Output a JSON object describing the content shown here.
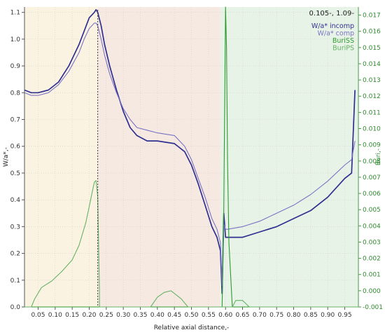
{
  "chart_data": {
    "type": "line",
    "x_label": "Relative axial distance,-",
    "y_left_label": "W/a*,-",
    "y_right_label": "Buri,-",
    "readout": "0.105-, 1.09-",
    "x_range": [
      0.01,
      0.99
    ],
    "y_left_range": [
      0,
      1.12
    ],
    "y_right_range": [
      -0.001,
      0.0175
    ],
    "x_ticks": [
      "0.05",
      "0.10",
      "0.15",
      "0.20",
      "0.25",
      "0.30",
      "0.35",
      "0.40",
      "0.45",
      "0.50",
      "0.55",
      "0.60",
      "0.65",
      "0.70",
      "0.75",
      "0.80",
      "0.85",
      "0.90",
      "0.95"
    ],
    "y_left_ticks": [
      "0.0",
      "0.1",
      "0.2",
      "0.3",
      "0.4",
      "0.5",
      "0.6",
      "0.7",
      "0.8",
      "0.9",
      "1.0",
      "1.1"
    ],
    "y_right_ticks": [
      "-0.001",
      "0.000",
      "0.001",
      "0.002",
      "0.003",
      "0.004",
      "0.005",
      "0.006",
      "0.007",
      "0.008",
      "0.009",
      "0.010",
      "0.011",
      "0.012",
      "0.013",
      "0.014",
      "0.015",
      "0.016",
      "0.017"
    ],
    "regions": [
      {
        "from": 0.01,
        "to": 0.225,
        "color": "#fbf3e2"
      },
      {
        "from": 0.225,
        "to": 0.585,
        "color": "#f6e9e1"
      },
      {
        "from": 0.585,
        "to": 0.99,
        "color": "#e6f3e6"
      }
    ],
    "marker_line_x": 0.225,
    "grid": true,
    "legend_position": "top-right",
    "series": [
      {
        "name": "W/a* incomp",
        "axis": "left",
        "color": "#303090",
        "x": [
          0.01,
          0.03,
          0.05,
          0.08,
          0.11,
          0.14,
          0.17,
          0.185,
          0.2,
          0.215,
          0.22,
          0.225,
          0.235,
          0.245,
          0.26,
          0.28,
          0.3,
          0.32,
          0.34,
          0.37,
          0.4,
          0.45,
          0.48,
          0.5,
          0.52,
          0.54,
          0.56,
          0.575,
          0.585,
          0.59,
          0.595,
          0.6,
          0.605,
          0.65,
          0.7,
          0.75,
          0.8,
          0.85,
          0.9,
          0.95,
          0.97,
          0.98
        ],
        "y": [
          0.81,
          0.8,
          0.8,
          0.81,
          0.84,
          0.9,
          0.98,
          1.03,
          1.08,
          1.1,
          1.11,
          1.1,
          1.05,
          0.98,
          0.9,
          0.81,
          0.73,
          0.67,
          0.64,
          0.62,
          0.62,
          0.61,
          0.58,
          0.53,
          0.46,
          0.38,
          0.3,
          0.26,
          0.21,
          0.05,
          0.35,
          0.26,
          0.26,
          0.26,
          0.28,
          0.3,
          0.33,
          0.36,
          0.41,
          0.48,
          0.5,
          0.81
        ]
      },
      {
        "name": "W/a* comp",
        "axis": "left",
        "color": "#7a73c4",
        "x": [
          0.01,
          0.03,
          0.05,
          0.08,
          0.11,
          0.14,
          0.17,
          0.185,
          0.2,
          0.215,
          0.22,
          0.225,
          0.235,
          0.245,
          0.26,
          0.28,
          0.3,
          0.32,
          0.34,
          0.37,
          0.4,
          0.45,
          0.48,
          0.5,
          0.52,
          0.54,
          0.56,
          0.575,
          0.585,
          0.59,
          0.595,
          0.6,
          0.605,
          0.65,
          0.7,
          0.75,
          0.8,
          0.85,
          0.9,
          0.95,
          0.97,
          0.98
        ],
        "y": [
          0.8,
          0.79,
          0.79,
          0.8,
          0.83,
          0.88,
          0.95,
          1.0,
          1.04,
          1.06,
          1.06,
          1.05,
          1.0,
          0.94,
          0.87,
          0.8,
          0.74,
          0.7,
          0.67,
          0.66,
          0.65,
          0.64,
          0.6,
          0.55,
          0.48,
          0.41,
          0.33,
          0.29,
          0.24,
          0.08,
          0.31,
          0.29,
          0.29,
          0.3,
          0.32,
          0.35,
          0.38,
          0.42,
          0.47,
          0.53,
          0.55,
          0.62
        ]
      },
      {
        "name": "BuriSS",
        "axis": "right",
        "color": "#2e9a2e",
        "x": [
          0.01,
          0.585,
          0.59,
          0.595,
          0.6,
          0.603,
          0.606,
          0.61,
          0.62,
          0.99
        ],
        "y": [
          -0.001,
          -0.001,
          -0.001,
          0.005,
          0.0175,
          0.015,
          0.008,
          0.003,
          -0.001,
          -0.001
        ]
      },
      {
        "name": "BuriPS",
        "axis": "right",
        "color": "#66b266",
        "x": [
          0.01,
          0.03,
          0.04,
          0.06,
          0.09,
          0.12,
          0.15,
          0.17,
          0.19,
          0.2,
          0.21,
          0.215,
          0.22,
          0.225,
          0.23,
          0.23,
          0.3,
          0.38,
          0.4,
          0.42,
          0.44,
          0.47,
          0.49,
          0.5,
          0.6,
          0.62,
          0.63,
          0.65,
          0.67,
          0.99
        ],
        "y": [
          -0.001,
          -0.001,
          -0.0005,
          0.0002,
          0.0006,
          0.0012,
          0.0019,
          0.0028,
          0.0042,
          0.0052,
          0.0062,
          0.0067,
          0.0068,
          0.0058,
          0.0,
          -0.001,
          -0.001,
          -0.001,
          -0.0004,
          -0.0001,
          0.0,
          -0.0005,
          -0.001,
          -0.001,
          -0.001,
          -0.001,
          -0.0006,
          -0.0006,
          -0.001,
          -0.001
        ]
      }
    ]
  }
}
